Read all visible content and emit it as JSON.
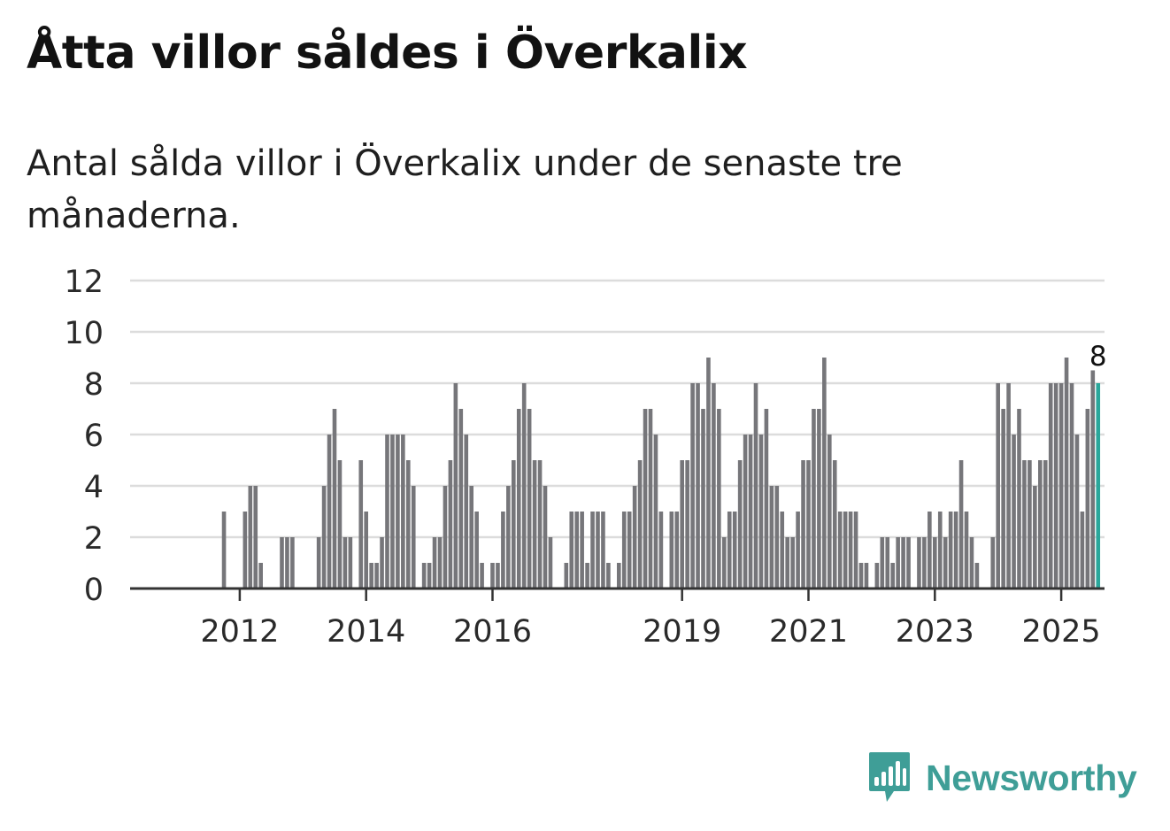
{
  "title": "Åtta villor såldes i Överkalix",
  "subtitle": "Antal sålda villor i Överkalix under de senaste tre månaderna.",
  "logo": {
    "text": "Newsworthy",
    "icon": "bar-chart-icon"
  },
  "colors": {
    "bar": "#76767a",
    "highlight": "#2aa79b",
    "grid": "#dcdcdc",
    "axis": "#333333",
    "brand": "#3f9e97"
  },
  "chart_data": {
    "type": "bar",
    "title": "Åtta villor såldes i Överkalix",
    "xlabel": "",
    "ylabel": "",
    "ylim": [
      0,
      12
    ],
    "yticks": [
      "0",
      "2",
      "4",
      "6",
      "8",
      "10",
      "12"
    ],
    "xticks": [
      "2012",
      "2014",
      "2016",
      "2019",
      "2021",
      "2023",
      "2025"
    ],
    "start": "2011-01",
    "end": "2025-10",
    "values": [
      0,
      0,
      0,
      0,
      0,
      0,
      0,
      0,
      0,
      3,
      0,
      0,
      0,
      3,
      4,
      4,
      1,
      0,
      0,
      0,
      2,
      2,
      2,
      0,
      0,
      0,
      0,
      2,
      4,
      6,
      7,
      5,
      2,
      2,
      0,
      5,
      3,
      1,
      1,
      2,
      6,
      6,
      6,
      6,
      5,
      4,
      0,
      1,
      1,
      2,
      2,
      4,
      5,
      8,
      7,
      6,
      4,
      3,
      1,
      0,
      1,
      1,
      3,
      4,
      5,
      7,
      8,
      7,
      5,
      5,
      4,
      2,
      0,
      0,
      1,
      3,
      3,
      3,
      1,
      3,
      3,
      3,
      1,
      0,
      1,
      3,
      3,
      4,
      5,
      7,
      7,
      6,
      3,
      0,
      3,
      3,
      5,
      5,
      8,
      8,
      7,
      9,
      8,
      7,
      2,
      3,
      3,
      5,
      6,
      6,
      8,
      6,
      7,
      4,
      4,
      3,
      2,
      2,
      3,
      5,
      5,
      7,
      7,
      9,
      6,
      5,
      3,
      3,
      3,
      3,
      1,
      1,
      0,
      1,
      2,
      2,
      1,
      2,
      2,
      2,
      0,
      2,
      2,
      3,
      2,
      3,
      2,
      3,
      3,
      5,
      3,
      2,
      1,
      0,
      0,
      2,
      8,
      7,
      8,
      6,
      7,
      5,
      5,
      4,
      5,
      5,
      8,
      8,
      8,
      9,
      8,
      6,
      3,
      7,
      8.5,
      8
    ],
    "highlight_label": "8"
  }
}
